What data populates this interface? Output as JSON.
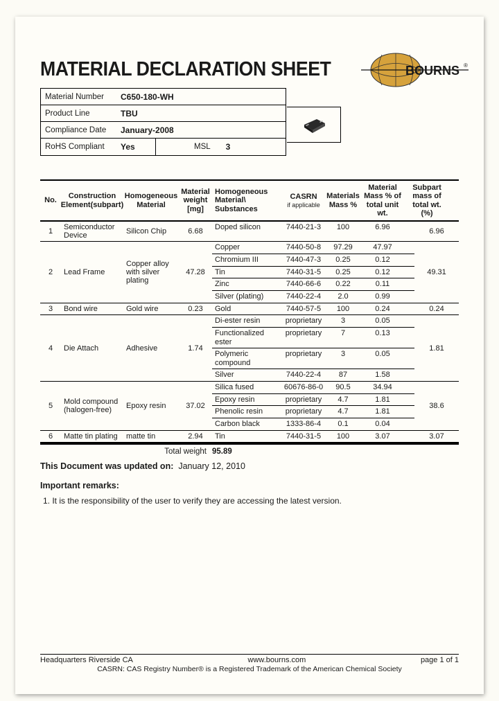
{
  "title": "MATERIAL DECLARATION SHEET",
  "logo": {
    "brand": "BOURNS",
    "globe_fill": "#d6a23c",
    "globe_stroke": "#333333",
    "text_color": "#1a1a1a"
  },
  "info": {
    "material_number_label": "Material Number",
    "material_number": "C650-180-WH",
    "product_line_label": "Product Line",
    "product_line": "TBU",
    "compliance_date_label": "Compliance Date",
    "compliance_date": "January-2008",
    "rohs_label": "RoHS Compliant",
    "rohs": "Yes",
    "msl_label": "MSL",
    "msl": "3"
  },
  "columns": {
    "no": "No.",
    "elem": "Construction Element(subpart)",
    "hom": "Homogeneous Material",
    "wt": "Material weight [mg]",
    "sub": "Homogeneous Material\\ Substances",
    "cas": "CASRN",
    "cas_small": "if applicable",
    "mm": "Materials Mass %",
    "mu": "Material Mass % of total unit wt.",
    "sp": "Subpart mass of total wt. (%)"
  },
  "rows": [
    {
      "no": "1",
      "elem": "Semiconductor Device",
      "hom": "Silicon Chip",
      "wt": "6.68",
      "subs": [
        {
          "name": "Doped silicon",
          "cas": "7440-21-3",
          "mm": "100",
          "mu": "6.96"
        }
      ],
      "sp": "6.96"
    },
    {
      "no": "2",
      "elem": "Lead Frame",
      "hom": "Copper alloy with silver plating",
      "wt": "47.28",
      "subs": [
        {
          "name": "Copper",
          "cas": "7440-50-8",
          "mm": "97.29",
          "mu": "47.97"
        },
        {
          "name": "Chromium III",
          "cas": "7440-47-3",
          "mm": "0.25",
          "mu": "0.12"
        },
        {
          "name": "Tin",
          "cas": "7440-31-5",
          "mm": "0.25",
          "mu": "0.12"
        },
        {
          "name": "Zinc",
          "cas": "7440-66-6",
          "mm": "0.22",
          "mu": "0.11"
        },
        {
          "name": "Silver (plating)",
          "cas": "7440-22-4",
          "mm": "2.0",
          "mu": "0.99"
        }
      ],
      "sp": "49.31"
    },
    {
      "no": "3",
      "elem": "Bond wire",
      "hom": "Gold wire",
      "wt": "0.23",
      "subs": [
        {
          "name": "Gold",
          "cas": "7440-57-5",
          "mm": "100",
          "mu": "0.24"
        }
      ],
      "sp": "0.24"
    },
    {
      "no": "4",
      "elem": "Die Attach",
      "hom": "Adhesive",
      "wt": "1.74",
      "subs": [
        {
          "name": "Di-ester resin",
          "cas": "proprietary",
          "mm": "3",
          "mu": "0.05"
        },
        {
          "name": "Functionalized ester",
          "cas": "proprietary",
          "mm": "7",
          "mu": "0.13"
        },
        {
          "name": "Polymeric compound",
          "cas": "proprietary",
          "mm": "3",
          "mu": "0.05"
        },
        {
          "name": "Silver",
          "cas": "7440-22-4",
          "mm": "87",
          "mu": "1.58"
        }
      ],
      "sp": "1.81"
    },
    {
      "no": "5",
      "elem": "Mold compound (halogen-free)",
      "hom": "Epoxy resin",
      "wt": "37.02",
      "subs": [
        {
          "name": "Silica fused",
          "cas": "60676-86-0",
          "mm": "90.5",
          "mu": "34.94"
        },
        {
          "name": "Epoxy resin",
          "cas": "proprietary",
          "mm": "4.7",
          "mu": "1.81"
        },
        {
          "name": "Phenolic resin",
          "cas": "proprietary",
          "mm": "4.7",
          "mu": "1.81"
        },
        {
          "name": "Carbon black",
          "cas": "1333-86-4",
          "mm": "0.1",
          "mu": "0.04"
        }
      ],
      "sp": "38.6"
    },
    {
      "no": "6",
      "elem": "Matte tin plating",
      "hom": "matte tin",
      "wt": "2.94",
      "subs": [
        {
          "name": "Tin",
          "cas": "7440-31-5",
          "mm": "100",
          "mu": "3.07"
        }
      ],
      "sp": "3.07"
    }
  ],
  "total_label": "Total weight",
  "total_value": "95.89",
  "updated_label": "This Document was updated on:",
  "updated_value": "January 12, 2010",
  "remarks_header": "Important remarks:",
  "remarks_1": "1.   It is the responsibility of the user to verify they are accessing the latest version.",
  "footer": {
    "left": "Headquarters Riverside CA",
    "center": "www.bourns.com",
    "right": "page 1 of 1",
    "note": "CASRN: CAS Registry Number® is a Registered Trademark of the American Chemical Society"
  }
}
